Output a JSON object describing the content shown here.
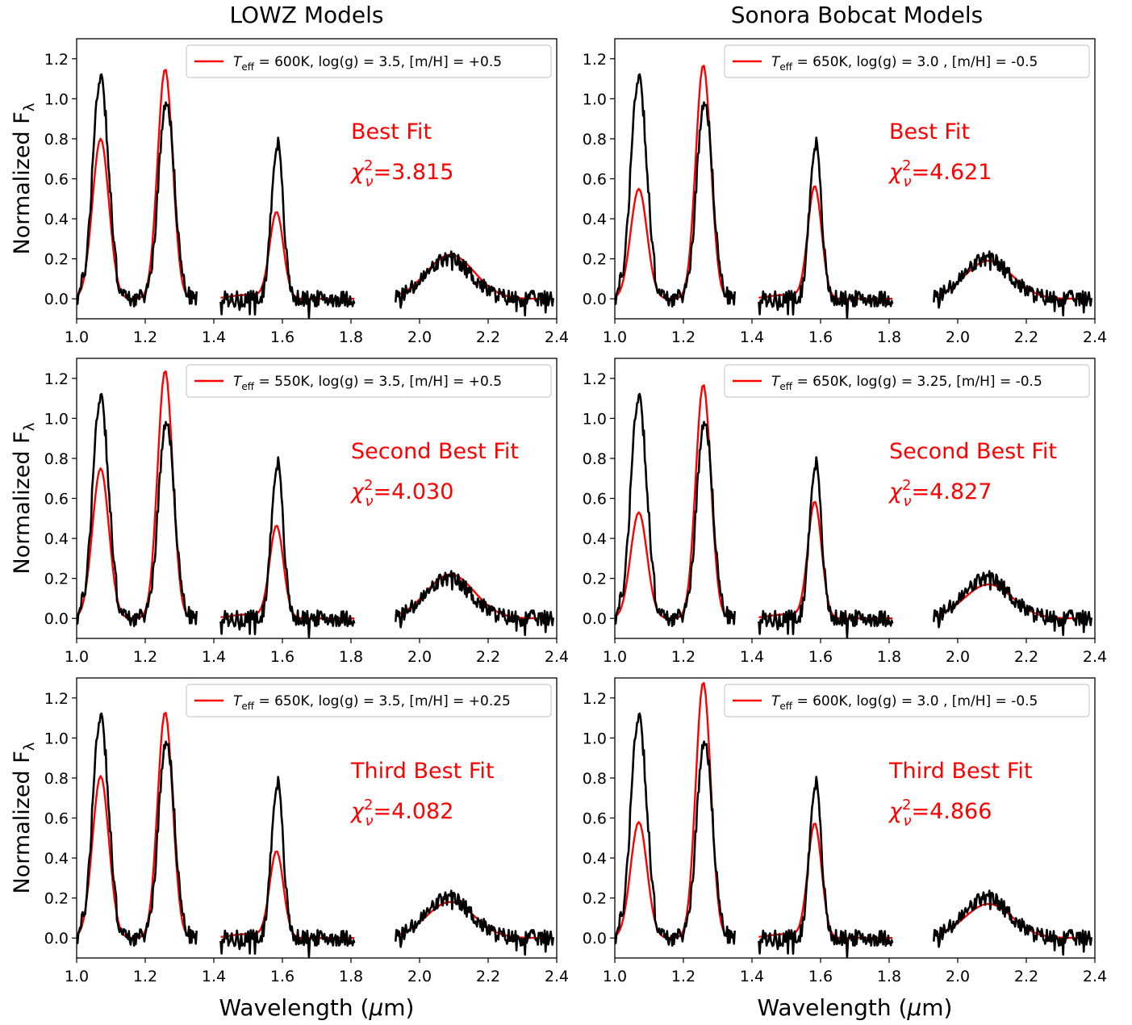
{
  "figure": {
    "col_titles": [
      "LOWZ Models",
      "Sonora Bobcat Models"
    ],
    "ylabel_base": "Normalized F",
    "ylabel_sub": "λ",
    "xlabel_main": "Wavelength (",
    "xlabel_mu": "μ",
    "xlabel_end": "m)"
  },
  "colors": {
    "observed": "#000000",
    "model": "#ff0000"
  },
  "chart_data": [
    {
      "type": "line",
      "row": 0,
      "col": 0,
      "xlim": [
        1.0,
        2.4
      ],
      "ylim": [
        -0.1,
        1.3
      ],
      "xticks": [
        "1.0",
        "1.2",
        "1.4",
        "1.6",
        "1.8",
        "2.0",
        "2.2",
        "2.4"
      ],
      "yticks": [
        "0.0",
        "0.2",
        "0.4",
        "0.6",
        "0.8",
        "1.0",
        "1.2"
      ],
      "legend": {
        "teff": "600K",
        "rest": ", log(g) = 3.5, [m/H] = +0.5",
        "placement": "top-right"
      },
      "fit_label": "Best Fit",
      "chi2": "=3.815",
      "model_peaks": [
        0.8,
        1.15,
        0.43,
        0.22
      ]
    },
    {
      "type": "line",
      "row": 0,
      "col": 1,
      "xlim": [
        1.0,
        2.4
      ],
      "ylim": [
        -0.1,
        1.3
      ],
      "xticks": [
        "1.0",
        "1.2",
        "1.4",
        "1.6",
        "1.8",
        "2.0",
        "2.2",
        "2.4"
      ],
      "yticks": [
        "0.0",
        "0.2",
        "0.4",
        "0.6",
        "0.8",
        "1.0",
        "1.2"
      ],
      "legend": {
        "teff": "650K",
        "rest": ", log(g) = 3.0 , [m/H] = -0.5",
        "placement": "top-right"
      },
      "fit_label": "Best Fit",
      "chi2": "=4.621",
      "model_peaks": [
        0.55,
        1.17,
        0.56,
        0.19
      ]
    },
    {
      "type": "line",
      "row": 1,
      "col": 0,
      "xlim": [
        1.0,
        2.4
      ],
      "ylim": [
        -0.1,
        1.3
      ],
      "xticks": [
        "1.0",
        "1.2",
        "1.4",
        "1.6",
        "1.8",
        "2.0",
        "2.2",
        "2.4"
      ],
      "yticks": [
        "0.0",
        "0.2",
        "0.4",
        "0.6",
        "0.8",
        "1.0",
        "1.2"
      ],
      "legend": {
        "teff": "550K",
        "rest": ", log(g) = 3.5, [m/H] = +0.5",
        "placement": "top-right"
      },
      "fit_label": "Second Best Fit",
      "chi2": "=4.030",
      "model_peaks": [
        0.75,
        1.24,
        0.46,
        0.22
      ]
    },
    {
      "type": "line",
      "row": 1,
      "col": 1,
      "xlim": [
        1.0,
        2.4
      ],
      "ylim": [
        -0.1,
        1.3
      ],
      "xticks": [
        "1.0",
        "1.2",
        "1.4",
        "1.6",
        "1.8",
        "2.0",
        "2.2",
        "2.4"
      ],
      "yticks": [
        "0.0",
        "0.2",
        "0.4",
        "0.6",
        "0.8",
        "1.0",
        "1.2"
      ],
      "legend": {
        "teff": "650K",
        "rest": ", log(g) = 3.25, [m/H] = -0.5",
        "placement": "top-right"
      },
      "fit_label": "Second Best Fit",
      "chi2": "=4.827",
      "model_peaks": [
        0.53,
        1.17,
        0.58,
        0.17
      ]
    },
    {
      "type": "line",
      "row": 2,
      "col": 0,
      "xlim": [
        1.0,
        2.4
      ],
      "ylim": [
        -0.1,
        1.3
      ],
      "xticks": [
        "1.0",
        "1.2",
        "1.4",
        "1.6",
        "1.8",
        "2.0",
        "2.2",
        "2.4"
      ],
      "yticks": [
        "0.0",
        "0.2",
        "0.4",
        "0.6",
        "0.8",
        "1.0",
        "1.2"
      ],
      "legend": {
        "teff": "650K",
        "rest": ", log(g) = 3.5, [m/H] = +0.25",
        "placement": "top-right"
      },
      "fit_label": "Third Best Fit",
      "chi2": "=4.082",
      "model_peaks": [
        0.81,
        1.13,
        0.43,
        0.18
      ]
    },
    {
      "type": "line",
      "row": 2,
      "col": 1,
      "xlim": [
        1.0,
        2.4
      ],
      "ylim": [
        -0.1,
        1.3
      ],
      "xticks": [
        "1.0",
        "1.2",
        "1.4",
        "1.6",
        "1.8",
        "2.0",
        "2.2",
        "2.4"
      ],
      "yticks": [
        "0.0",
        "0.2",
        "0.4",
        "0.6",
        "0.8",
        "1.0",
        "1.2"
      ],
      "legend": {
        "teff": "600K",
        "rest": ", log(g) = 3.0 , [m/H] = -0.5",
        "placement": "top-right"
      },
      "fit_label": "Third Best Fit",
      "chi2": "=4.866",
      "model_peaks": [
        0.58,
        1.28,
        0.57,
        0.17
      ]
    }
  ]
}
